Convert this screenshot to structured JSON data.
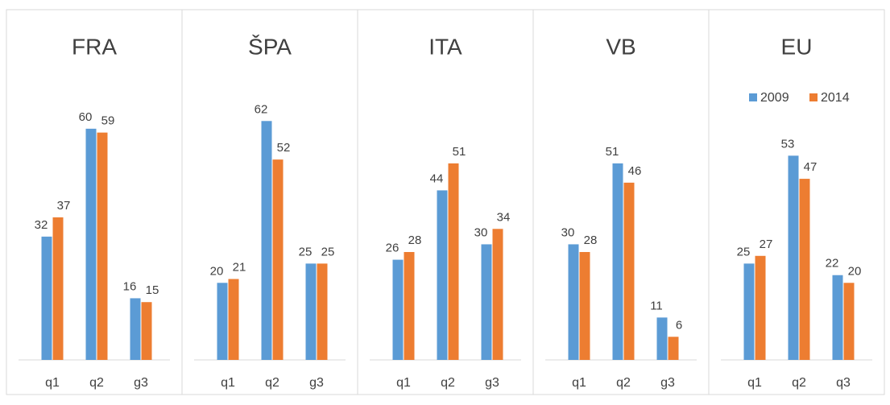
{
  "chart_data": [
    {
      "type": "bar",
      "title": "FRA",
      "categories": [
        "q1",
        "q2",
        "g3"
      ],
      "ylim": [
        0,
        70
      ],
      "series": [
        {
          "name": "2009",
          "color": "#5b9bd5",
          "values": [
            32,
            60,
            16
          ]
        },
        {
          "name": "2014",
          "color": "#ed7d31",
          "values": [
            37,
            59,
            15
          ]
        }
      ]
    },
    {
      "type": "bar",
      "title": "ŠPA",
      "categories": [
        "q1",
        "q2",
        "g3"
      ],
      "ylim": [
        0,
        70
      ],
      "series": [
        {
          "name": "2009",
          "color": "#5b9bd5",
          "values": [
            20,
            62,
            25
          ]
        },
        {
          "name": "2014",
          "color": "#ed7d31",
          "values": [
            21,
            52,
            25
          ]
        }
      ]
    },
    {
      "type": "bar",
      "title": "ITA",
      "categories": [
        "q1",
        "q2",
        "g3"
      ],
      "ylim": [
        0,
        70
      ],
      "series": [
        {
          "name": "2009",
          "color": "#5b9bd5",
          "values": [
            26,
            44,
            30
          ]
        },
        {
          "name": "2014",
          "color": "#ed7d31",
          "values": [
            28,
            51,
            34
          ]
        }
      ]
    },
    {
      "type": "bar",
      "title": "VB",
      "categories": [
        "q1",
        "q2",
        "g3"
      ],
      "ylim": [
        0,
        70
      ],
      "series": [
        {
          "name": "2009",
          "color": "#5b9bd5",
          "values": [
            30,
            51,
            11
          ]
        },
        {
          "name": "2014",
          "color": "#ed7d31",
          "values": [
            28,
            46,
            6
          ]
        }
      ]
    },
    {
      "type": "bar",
      "title": "EU",
      "categories": [
        "q1",
        "q2",
        "q3"
      ],
      "ylim": [
        0,
        70
      ],
      "legend": "top",
      "series": [
        {
          "name": "2009",
          "color": "#5b9bd5",
          "values": [
            25,
            53,
            22
          ]
        },
        {
          "name": "2014",
          "color": "#ed7d31",
          "values": [
            27,
            47,
            20
          ]
        }
      ]
    }
  ]
}
